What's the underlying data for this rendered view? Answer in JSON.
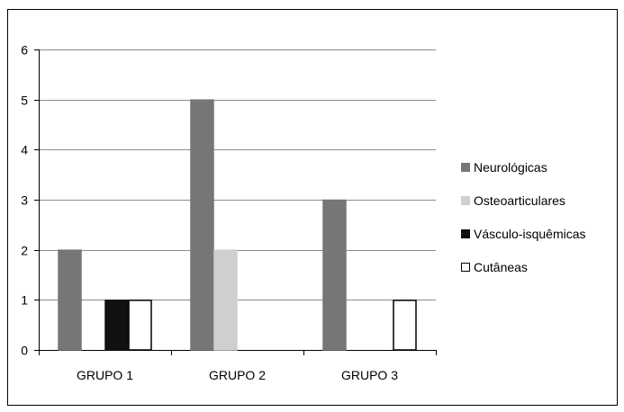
{
  "chart_data": {
    "type": "bar",
    "categories": [
      "GRUPO 1",
      "GRUPO 2",
      "GRUPO 3"
    ],
    "series": [
      {
        "name": "Neurológicas",
        "values": [
          2,
          5,
          3
        ],
        "color": "#767676",
        "stroke": "#767676"
      },
      {
        "name": "Osteoarticulares",
        "values": [
          0,
          2,
          0
        ],
        "color": "#cfcfcf",
        "stroke": "#cfcfcf"
      },
      {
        "name": "Vásculo-isquêmicas",
        "values": [
          1,
          0,
          0
        ],
        "color": "#111111",
        "stroke": "#111111"
      },
      {
        "name": "Cutâneas",
        "values": [
          1,
          0,
          1
        ],
        "color": "#ffffff",
        "stroke": "#000000"
      }
    ],
    "y_ticks": [
      "0",
      "1",
      "2",
      "3",
      "4",
      "5",
      "6"
    ],
    "ylim": [
      0,
      6
    ],
    "grid": true,
    "legend_position": "right"
  }
}
